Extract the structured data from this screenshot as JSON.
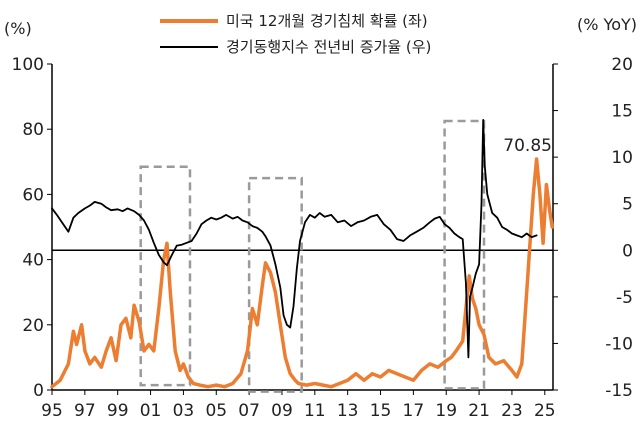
{
  "chart_data": {
    "type": "line",
    "left_axis": {
      "unit_label": "(%)",
      "ylim": [
        0,
        100
      ],
      "ticks": [
        0,
        20,
        40,
        60,
        80,
        100
      ]
    },
    "right_axis": {
      "unit_label": "(% YoY)",
      "ylim": [
        -15,
        20
      ],
      "ticks": [
        -15,
        -10,
        -5,
        0,
        5,
        10,
        15,
        20
      ]
    },
    "x_axis": {
      "xlim": [
        1995,
        2025.5
      ],
      "ticks": [
        "95",
        "97",
        "99",
        "01",
        "03",
        "05",
        "07",
        "09",
        "11",
        "13",
        "15",
        "17",
        "19",
        "21",
        "23",
        "25"
      ]
    },
    "legend": {
      "placement": "top-center"
    },
    "annotation": {
      "text": "70.85",
      "x": 2024.2,
      "y": 70.85
    },
    "recession_boxes": [
      {
        "x0": 2000.4,
        "x1": 2003.4,
        "y0": 1.5,
        "y1": 68.5
      },
      {
        "x0": 2007.0,
        "x1": 2010.2,
        "y0": -0.5,
        "y1": 65.0
      },
      {
        "x0": 2018.9,
        "x1": 2021.3,
        "y0": 0.5,
        "y1": 82.5
      }
    ],
    "series": [
      {
        "name": "미국 12개월 경기침체 확률 (좌)",
        "axis": "left",
        "color": "#ED7D31",
        "points": [
          [
            1995.0,
            1
          ],
          [
            1995.5,
            3
          ],
          [
            1996.0,
            8
          ],
          [
            1996.3,
            18
          ],
          [
            1996.5,
            14
          ],
          [
            1996.8,
            20
          ],
          [
            1997.0,
            12
          ],
          [
            1997.3,
            8
          ],
          [
            1997.6,
            10
          ],
          [
            1998.0,
            7
          ],
          [
            1998.3,
            12
          ],
          [
            1998.6,
            16
          ],
          [
            1998.9,
            9
          ],
          [
            1999.2,
            20
          ],
          [
            1999.5,
            22
          ],
          [
            1999.8,
            16
          ],
          [
            2000.0,
            26
          ],
          [
            2000.3,
            21
          ],
          [
            2000.6,
            12
          ],
          [
            2000.9,
            14
          ],
          [
            2001.2,
            12
          ],
          [
            2001.5,
            25
          ],
          [
            2001.8,
            40
          ],
          [
            2002.0,
            45
          ],
          [
            2002.2,
            30
          ],
          [
            2002.5,
            12
          ],
          [
            2002.8,
            6
          ],
          [
            2003.0,
            8
          ],
          [
            2003.3,
            4
          ],
          [
            2003.6,
            2
          ],
          [
            2004.0,
            1.5
          ],
          [
            2004.5,
            1
          ],
          [
            2005.0,
            1.5
          ],
          [
            2005.5,
            1
          ],
          [
            2006.0,
            2
          ],
          [
            2006.5,
            5
          ],
          [
            2006.9,
            12
          ],
          [
            2007.2,
            25
          ],
          [
            2007.5,
            20
          ],
          [
            2007.8,
            32
          ],
          [
            2008.0,
            39
          ],
          [
            2008.3,
            36
          ],
          [
            2008.6,
            30
          ],
          [
            2008.9,
            20
          ],
          [
            2009.2,
            10
          ],
          [
            2009.5,
            5
          ],
          [
            2009.8,
            3
          ],
          [
            2010.0,
            2
          ],
          [
            2010.5,
            1.5
          ],
          [
            2011.0,
            2
          ],
          [
            2011.5,
            1.5
          ],
          [
            2012.0,
            1
          ],
          [
            2012.5,
            2
          ],
          [
            2013.0,
            3
          ],
          [
            2013.5,
            5
          ],
          [
            2014.0,
            3
          ],
          [
            2014.5,
            5
          ],
          [
            2015.0,
            4
          ],
          [
            2015.5,
            6
          ],
          [
            2016.0,
            5
          ],
          [
            2016.5,
            4
          ],
          [
            2017.0,
            3
          ],
          [
            2017.5,
            6
          ],
          [
            2018.0,
            8
          ],
          [
            2018.5,
            7
          ],
          [
            2019.0,
            9
          ],
          [
            2019.3,
            10
          ],
          [
            2019.6,
            12
          ],
          [
            2020.0,
            15
          ],
          [
            2020.2,
            25
          ],
          [
            2020.4,
            35
          ],
          [
            2020.6,
            28
          ],
          [
            2020.8,
            25
          ],
          [
            2021.0,
            20
          ],
          [
            2021.3,
            17
          ],
          [
            2021.6,
            10
          ],
          [
            2022.0,
            8
          ],
          [
            2022.5,
            9
          ],
          [
            2023.0,
            6
          ],
          [
            2023.3,
            4
          ],
          [
            2023.6,
            8
          ],
          [
            2023.9,
            30
          ],
          [
            2024.1,
            45
          ],
          [
            2024.3,
            60
          ],
          [
            2024.5,
            70.85
          ],
          [
            2024.7,
            60
          ],
          [
            2024.9,
            45
          ],
          [
            2025.1,
            63
          ],
          [
            2025.3,
            55
          ],
          [
            2025.45,
            50
          ]
        ]
      },
      {
        "name": "경기동행지수 전년비 증가율 (우)",
        "axis": "right",
        "color": "#000000",
        "points": [
          [
            1995.0,
            4.5
          ],
          [
            1995.3,
            3.8
          ],
          [
            1995.6,
            3.0
          ],
          [
            1996.0,
            2.0
          ],
          [
            1996.3,
            3.5
          ],
          [
            1996.6,
            4.0
          ],
          [
            1997.0,
            4.5
          ],
          [
            1997.3,
            4.8
          ],
          [
            1997.6,
            5.2
          ],
          [
            1998.0,
            5.0
          ],
          [
            1998.3,
            4.6
          ],
          [
            1998.6,
            4.3
          ],
          [
            1999.0,
            4.4
          ],
          [
            1999.3,
            4.2
          ],
          [
            1999.6,
            4.5
          ],
          [
            2000.0,
            4.2
          ],
          [
            2000.3,
            3.8
          ],
          [
            2000.6,
            3.2
          ],
          [
            2000.9,
            2.2
          ],
          [
            2001.2,
            0.8
          ],
          [
            2001.5,
            -0.5
          ],
          [
            2001.8,
            -1.3
          ],
          [
            2002.0,
            -1.6
          ],
          [
            2002.3,
            -0.5
          ],
          [
            2002.6,
            0.5
          ],
          [
            2002.9,
            0.6
          ],
          [
            2003.2,
            0.8
          ],
          [
            2003.5,
            1.0
          ],
          [
            2003.8,
            1.8
          ],
          [
            2004.1,
            2.8
          ],
          [
            2004.4,
            3.2
          ],
          [
            2004.7,
            3.5
          ],
          [
            2005.0,
            3.3
          ],
          [
            2005.3,
            3.5
          ],
          [
            2005.6,
            3.8
          ],
          [
            2006.0,
            3.4
          ],
          [
            2006.3,
            3.6
          ],
          [
            2006.6,
            3.2
          ],
          [
            2006.9,
            3.0
          ],
          [
            2007.2,
            2.6
          ],
          [
            2007.5,
            2.4
          ],
          [
            2007.8,
            2.0
          ],
          [
            2008.0,
            1.5
          ],
          [
            2008.3,
            0.5
          ],
          [
            2008.6,
            -1.5
          ],
          [
            2008.9,
            -4.0
          ],
          [
            2009.1,
            -7.0
          ],
          [
            2009.3,
            -8.0
          ],
          [
            2009.5,
            -8.3
          ],
          [
            2009.7,
            -6.0
          ],
          [
            2009.9,
            -2.0
          ],
          [
            2010.1,
            1.0
          ],
          [
            2010.4,
            3.0
          ],
          [
            2010.7,
            3.8
          ],
          [
            2011.0,
            3.5
          ],
          [
            2011.3,
            4.0
          ],
          [
            2011.6,
            3.6
          ],
          [
            2012.0,
            3.8
          ],
          [
            2012.4,
            3.0
          ],
          [
            2012.8,
            3.2
          ],
          [
            2013.2,
            2.6
          ],
          [
            2013.6,
            3.0
          ],
          [
            2014.0,
            3.2
          ],
          [
            2014.4,
            3.6
          ],
          [
            2014.8,
            3.8
          ],
          [
            2015.2,
            2.8
          ],
          [
            2015.6,
            2.2
          ],
          [
            2016.0,
            1.2
          ],
          [
            2016.4,
            1.0
          ],
          [
            2016.8,
            1.6
          ],
          [
            2017.2,
            2.0
          ],
          [
            2017.6,
            2.4
          ],
          [
            2018.0,
            3.0
          ],
          [
            2018.3,
            3.4
          ],
          [
            2018.6,
            3.6
          ],
          [
            2018.9,
            2.8
          ],
          [
            2019.2,
            2.4
          ],
          [
            2019.5,
            1.8
          ],
          [
            2019.8,
            1.4
          ],
          [
            2020.0,
            1.2
          ],
          [
            2020.2,
            -3.5
          ],
          [
            2020.35,
            -11.5
          ],
          [
            2020.45,
            -5.0
          ],
          [
            2020.6,
            -4.0
          ],
          [
            2020.8,
            -2.5
          ],
          [
            2021.0,
            -1.5
          ],
          [
            2021.15,
            5.0
          ],
          [
            2021.25,
            14.0
          ],
          [
            2021.35,
            9.0
          ],
          [
            2021.5,
            6.0
          ],
          [
            2021.8,
            4.0
          ],
          [
            2022.1,
            3.5
          ],
          [
            2022.4,
            2.5
          ],
          [
            2022.7,
            2.2
          ],
          [
            2023.0,
            1.8
          ],
          [
            2023.3,
            1.6
          ],
          [
            2023.6,
            1.4
          ],
          [
            2023.9,
            1.8
          ],
          [
            2024.2,
            1.4
          ],
          [
            2024.5,
            1.6
          ]
        ]
      }
    ]
  }
}
